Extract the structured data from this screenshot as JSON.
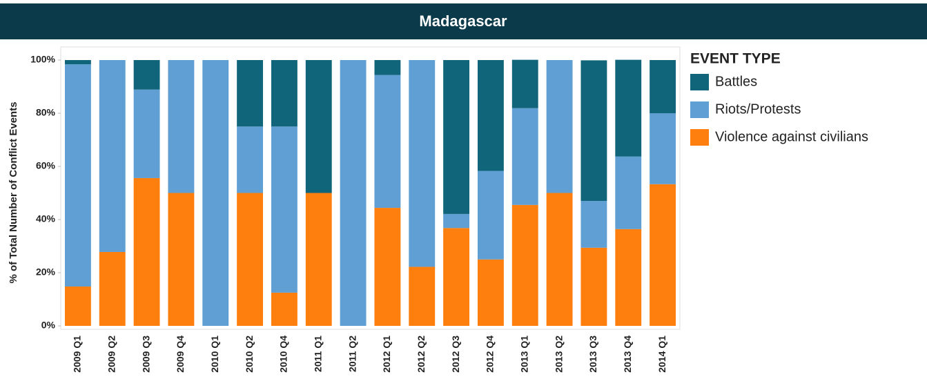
{
  "chart_data": {
    "type": "stacked_bar",
    "title": "Madagascar",
    "y_label": "% of Total Number of Conflict Events",
    "legend_title": "EVENT TYPE",
    "categories": [
      "2009 Q1",
      "2009 Q2",
      "2009 Q3",
      "2009 Q4",
      "2010 Q1",
      "2010 Q2",
      "2010 Q4",
      "2011 Q1",
      "2011 Q2",
      "2012 Q1",
      "2012 Q2",
      "2012 Q3",
      "2012 Q4",
      "2013 Q1",
      "2013 Q2",
      "2013 Q3",
      "2013 Q4",
      "2014 Q1"
    ],
    "series": [
      {
        "name": "Battles",
        "color": "#11657a",
        "values": [
          1.6,
          0,
          11.1,
          0,
          0,
          25,
          25,
          50,
          0,
          5.6,
          0,
          57.9,
          41.7,
          18.2,
          0,
          52.9,
          36.4,
          20
        ]
      },
      {
        "name": "Riots/Protests",
        "color": "#5f9fd3",
        "values": [
          83.6,
          72.2,
          33.3,
          50,
          100,
          25,
          62.5,
          0,
          100,
          50,
          77.8,
          5.3,
          33.3,
          36.4,
          50,
          17.6,
          27.3,
          26.7
        ]
      },
      {
        "name": "Violence against civilians",
        "color": "#ff7f0e",
        "values": [
          14.8,
          27.8,
          55.6,
          50,
          0,
          50,
          12.5,
          50,
          0,
          44.4,
          22.2,
          36.8,
          25,
          45.5,
          50,
          29.4,
          36.4,
          53.3
        ]
      }
    ],
    "stack_order": [
      2,
      1,
      0
    ],
    "ylim": [
      0,
      100
    ],
    "yticks": [
      {
        "value": 0,
        "label": "0%"
      },
      {
        "value": 20,
        "label": "20%"
      },
      {
        "value": 40,
        "label": "40%"
      },
      {
        "value": 60,
        "label": "60%"
      },
      {
        "value": 80,
        "label": "80%"
      },
      {
        "value": 100,
        "label": "100%"
      }
    ]
  }
}
